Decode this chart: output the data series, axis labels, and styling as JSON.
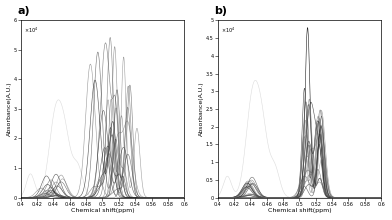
{
  "x_min": 0.4,
  "x_max": 0.6,
  "y_max_a": 60000,
  "y_max_b": 50000,
  "ylabel": "Absorbance(A.U.)",
  "xlabel": "Chemical shift(ppm)",
  "label_a": "a)",
  "label_b": "b)",
  "n_spectra": 20,
  "seed": 42,
  "bg_color": "#ffffff"
}
